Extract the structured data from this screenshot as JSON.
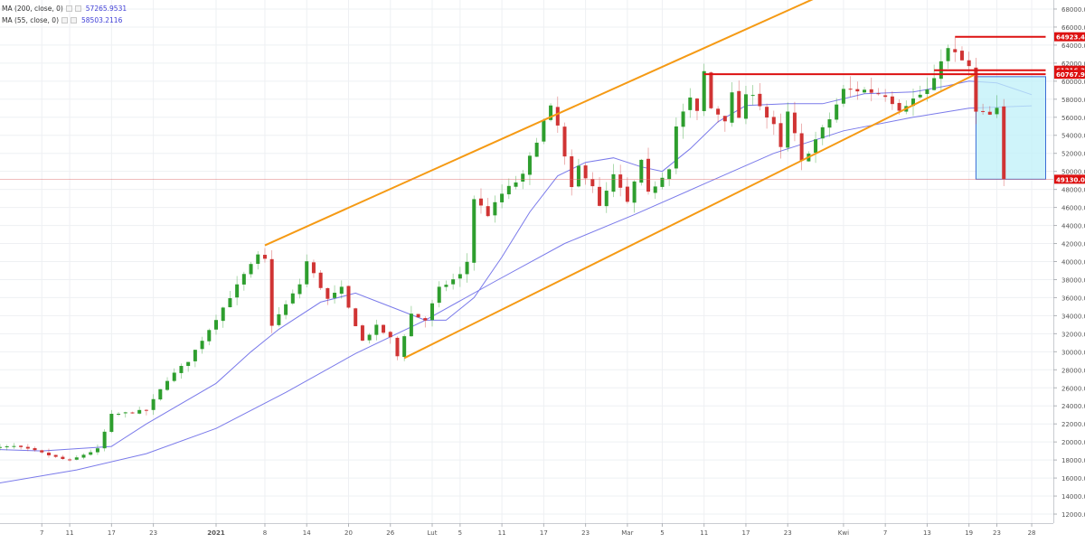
{
  "legend": {
    "ma200_label": "MA (200, close, 0)",
    "ma200_value": "57265.9531",
    "ma55_label": "MA (55, close, 0)",
    "ma55_value": "58503.2116"
  },
  "colors": {
    "up": "#2e9e2e",
    "down": "#d03434",
    "ma_line": "#7a7aea",
    "trend_line": "#f59a14",
    "level_line": "#dd1111",
    "highlight_fill": "#bff0f8",
    "highlight_stroke": "#3a6cd6",
    "grid": "#eef0f3"
  },
  "chart_data": {
    "type": "candlestick",
    "y_axis": {
      "min": 11000,
      "max": 69000,
      "ticks": [
        12000,
        14000,
        16000,
        18000,
        20000,
        22000,
        24000,
        26000,
        28000,
        30000,
        32000,
        34000,
        36000,
        38000,
        40000,
        42000,
        44000,
        46000,
        48000,
        50000,
        52000,
        54000,
        56000,
        58000,
        60000,
        62000,
        64000,
        66000,
        68000
      ],
      "tick_labels": [
        "12000.00",
        "14000.00",
        "16000.00",
        "18000.00",
        "20000.00",
        "22000.00",
        "24000.00",
        "26000.00",
        "28000.00",
        "30000.00",
        "32000.00",
        "34000.00",
        "36000.00",
        "38000.00",
        "40000.00",
        "42000.00",
        "44000.00",
        "46000.00",
        "48000.00",
        "50000.00",
        "52000.00",
        "54000.00",
        "56000.00",
        "58000.00",
        "60000.00",
        "62000.00",
        "64000.00",
        "66000.00",
        "68000.00"
      ]
    },
    "x_axis": {
      "tick_labels": [
        "7",
        "11",
        "17",
        "23",
        "2021",
        "8",
        "14",
        "20",
        "26",
        "Lut",
        "5",
        "11",
        "17",
        "23",
        "Mar",
        "5",
        "11",
        "17",
        "23",
        "Kwi",
        "7",
        "13",
        "19",
        "23",
        "28"
      ],
      "tick_days": [
        -25,
        -21,
        -15,
        -9,
        0,
        7,
        13,
        19,
        25,
        31,
        35,
        41,
        47,
        53,
        59,
        64,
        70,
        76,
        82,
        90,
        96,
        102,
        108,
        112,
        117
      ],
      "start_day": -33,
      "end_day": 115
    },
    "grid": true,
    "candles_total": 147,
    "level_labels": [
      {
        "text": "64923.45",
        "value": 64923.45
      },
      {
        "text": "61216.32",
        "value": 61216.32
      },
      {
        "text": "60767.92",
        "value": 60767.92
      },
      {
        "text": "49130.08",
        "value": 49130.08
      }
    ],
    "waypoints": [
      [
        -33,
        19200
      ],
      [
        -28,
        19500
      ],
      [
        -25,
        19000
      ],
      [
        -22,
        18300
      ],
      [
        -20,
        17900
      ],
      [
        -18,
        18600
      ],
      [
        -16,
        19200
      ],
      [
        -14,
        23000
      ],
      [
        -9,
        23500
      ],
      [
        -6,
        26900
      ],
      [
        -3,
        29000
      ],
      [
        0,
        32500
      ],
      [
        5,
        38500
      ],
      [
        7,
        40600
      ],
      [
        8,
        40200
      ],
      [
        9,
        33000
      ],
      [
        11,
        35200
      ],
      [
        13,
        37500
      ],
      [
        14,
        40000
      ],
      [
        17,
        35800
      ],
      [
        19,
        37000
      ],
      [
        20,
        34800
      ],
      [
        22,
        31200
      ],
      [
        24,
        32800
      ],
      [
        26,
        31500
      ],
      [
        27,
        29500
      ],
      [
        29,
        34200
      ],
      [
        31,
        33500
      ],
      [
        33,
        37000
      ],
      [
        36,
        38500
      ],
      [
        37,
        40000
      ],
      [
        38,
        47000
      ],
      [
        40,
        45200
      ],
      [
        42,
        47500
      ],
      [
        45,
        49500
      ],
      [
        48,
        55500
      ],
      [
        49,
        57000
      ],
      [
        50,
        55000
      ],
      [
        52,
        48000
      ],
      [
        53,
        50500
      ],
      [
        55,
        48500
      ],
      [
        56,
        46000
      ],
      [
        58,
        49500
      ],
      [
        60,
        46500
      ],
      [
        62,
        51000
      ],
      [
        63,
        47500
      ],
      [
        64,
        48500
      ],
      [
        66,
        50500
      ],
      [
        67,
        55000
      ],
      [
        69,
        58000
      ],
      [
        70,
        56500
      ],
      [
        71,
        61000
      ],
      [
        72,
        57000
      ],
      [
        74,
        55800
      ],
      [
        75,
        58500
      ],
      [
        76,
        56000
      ],
      [
        77,
        58200
      ],
      [
        78,
        58800
      ],
      [
        80,
        56000
      ],
      [
        81,
        55000
      ],
      [
        82,
        52500
      ],
      [
        83,
        56500
      ],
      [
        84,
        54000
      ],
      [
        85,
        51000
      ],
      [
        87,
        53500
      ],
      [
        89,
        55800
      ],
      [
        91,
        59000
      ],
      [
        94,
        59000
      ],
      [
        97,
        58500
      ],
      [
        99,
        57000
      ],
      [
        101,
        58000
      ],
      [
        103,
        59000
      ],
      [
        104,
        60000
      ],
      [
        105,
        62500
      ],
      [
        106,
        63500
      ],
      [
        107,
        63000
      ],
      [
        109,
        61500
      ],
      [
        110,
        56500
      ],
      [
        112,
        56200
      ],
      [
        113,
        56800
      ],
      [
        114,
        55000
      ],
      [
        115,
        53000
      ],
      [
        116,
        50500
      ],
      [
        117,
        49130
      ]
    ],
    "series": [
      {
        "name": "MA (200, close, 0)",
        "points": [
          [
            -33,
            15200
          ],
          [
            -20,
            16900
          ],
          [
            -10,
            18700
          ],
          [
            0,
            21500
          ],
          [
            10,
            25500
          ],
          [
            20,
            29800
          ],
          [
            30,
            33500
          ],
          [
            40,
            37800
          ],
          [
            50,
            42000
          ],
          [
            60,
            45200
          ],
          [
            70,
            48600
          ],
          [
            80,
            52000
          ],
          [
            90,
            54500
          ],
          [
            100,
            56000
          ],
          [
            108,
            57000
          ],
          [
            117,
            57266
          ]
        ]
      },
      {
        "name": "MA (55, close, 0)",
        "points": [
          [
            -33,
            19200
          ],
          [
            -25,
            19000
          ],
          [
            -15,
            19500
          ],
          [
            -10,
            22000
          ],
          [
            0,
            26500
          ],
          [
            5,
            30000
          ],
          [
            9,
            32500
          ],
          [
            15,
            35500
          ],
          [
            20,
            36500
          ],
          [
            25,
            35000
          ],
          [
            30,
            33500
          ],
          [
            33,
            33500
          ],
          [
            37,
            36000
          ],
          [
            41,
            40500
          ],
          [
            45,
            45500
          ],
          [
            49,
            49500
          ],
          [
            53,
            51000
          ],
          [
            57,
            51500
          ],
          [
            61,
            50500
          ],
          [
            64,
            50000
          ],
          [
            68,
            52500
          ],
          [
            72,
            55500
          ],
          [
            76,
            57300
          ],
          [
            82,
            57500
          ],
          [
            87,
            57500
          ],
          [
            93,
            58600
          ],
          [
            100,
            58800
          ],
          [
            105,
            59500
          ],
          [
            108,
            60000
          ],
          [
            112,
            59800
          ],
          [
            117,
            58503
          ]
        ]
      }
    ],
    "trend_lines": [
      {
        "from": [
          7,
          41800
        ],
        "to": [
          94,
          72000
        ]
      },
      {
        "from": [
          27,
          29300
        ],
        "to": [
          109,
          60800
        ]
      }
    ],
    "resistance_lines": [
      {
        "from": [
          70,
          60767.92
        ],
        "to": [
          119,
          60767.92
        ]
      },
      {
        "from": [
          103,
          61216.32
        ],
        "to": [
          119,
          61216.32
        ]
      },
      {
        "from": [
          106,
          64923.45
        ],
        "to": [
          119,
          64923.45
        ]
      }
    ],
    "current_price": 49130.08,
    "highlight_box": {
      "x_from": 109,
      "x_to": 119,
      "y_low": 49130.08,
      "y_high": 60500
    }
  }
}
